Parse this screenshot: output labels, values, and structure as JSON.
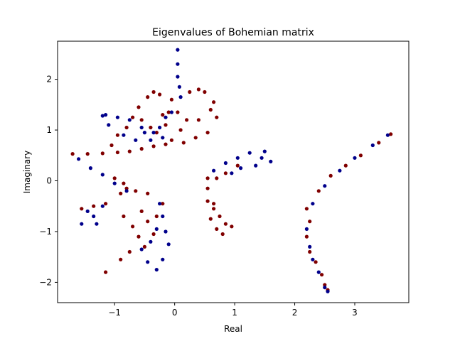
{
  "chart_data": {
    "type": "scatter",
    "title": "Eigenvalues of Bohemian matrix",
    "xlabel": "Real",
    "ylabel": "Imaginary",
    "xlim": [
      -1.95,
      3.9
    ],
    "ylim": [
      -2.4,
      2.75
    ],
    "x_ticks": [
      -1,
      0,
      1,
      2,
      3
    ],
    "x_tick_labels": [
      "−1",
      "0",
      "1",
      "2",
      "3"
    ],
    "y_ticks": [
      -2,
      -1,
      0,
      1,
      2
    ],
    "y_tick_labels": [
      "−2",
      "−1",
      "0",
      "1",
      "2"
    ],
    "grid": false,
    "colors": {
      "blue": "#00008b",
      "red": "#800000"
    },
    "series": [
      {
        "color": "#800000",
        "points": [
          [
            -1.7,
            0.53
          ],
          [
            -1.45,
            0.53
          ],
          [
            -1.2,
            0.54
          ],
          [
            -0.95,
            0.56
          ],
          [
            -0.75,
            0.58
          ],
          [
            -0.55,
            0.63
          ],
          [
            -0.35,
            0.68
          ],
          [
            -0.15,
            0.72
          ],
          [
            -0.05,
            0.8
          ],
          [
            -1.05,
            0.7
          ],
          [
            -0.95,
            0.9
          ],
          [
            -0.8,
            1.05
          ],
          [
            -0.7,
            1.25
          ],
          [
            -0.6,
            1.45
          ],
          [
            -0.45,
            1.65
          ],
          [
            -0.35,
            1.75
          ],
          [
            -0.25,
            1.7
          ],
          [
            -0.1,
            1.35
          ],
          [
            -0.05,
            1.6
          ],
          [
            -0.55,
            1.2
          ],
          [
            -0.4,
            1.05
          ],
          [
            -0.3,
            0.95
          ],
          [
            -0.2,
            1.3
          ],
          [
            -0.15,
            1.1
          ],
          [
            0.05,
            1.35
          ],
          [
            0.1,
            1.0
          ],
          [
            0.15,
            0.75
          ],
          [
            0.25,
            1.75
          ],
          [
            0.4,
            1.8
          ],
          [
            0.5,
            1.75
          ],
          [
            0.65,
            1.55
          ],
          [
            0.7,
            1.25
          ],
          [
            0.55,
            0.95
          ],
          [
            0.35,
            0.85
          ],
          [
            0.4,
            1.2
          ],
          [
            0.2,
            1.2
          ],
          [
            0.6,
            1.4
          ],
          [
            0.55,
            -0.15
          ],
          [
            0.55,
            0.05
          ],
          [
            0.7,
            0.05
          ],
          [
            0.85,
            0.15
          ],
          [
            1.05,
            0.3
          ],
          [
            0.55,
            -0.4
          ],
          [
            0.65,
            -0.55
          ],
          [
            0.75,
            -0.7
          ],
          [
            0.85,
            -0.85
          ],
          [
            0.95,
            -0.9
          ],
          [
            0.6,
            -0.75
          ],
          [
            0.7,
            -0.95
          ],
          [
            0.8,
            -1.05
          ],
          [
            0.65,
            -0.45
          ],
          [
            -1.55,
            -0.55
          ],
          [
            -1.35,
            -0.5
          ],
          [
            -1.15,
            -0.45
          ],
          [
            -0.9,
            -0.25
          ],
          [
            -0.8,
            -0.15
          ],
          [
            -0.65,
            -0.2
          ],
          [
            -0.45,
            -0.25
          ],
          [
            -1.0,
            0.05
          ],
          [
            -0.85,
            -0.05
          ],
          [
            -0.3,
            -0.7
          ],
          [
            -1.15,
            -1.8
          ],
          [
            -0.9,
            -1.55
          ],
          [
            -0.75,
            -1.4
          ],
          [
            -0.6,
            -1.1
          ],
          [
            -0.45,
            -0.8
          ],
          [
            -0.7,
            -0.9
          ],
          [
            -0.55,
            -0.6
          ],
          [
            -0.85,
            -0.7
          ],
          [
            -0.5,
            -1.3
          ],
          [
            -0.35,
            -1.05
          ],
          [
            -0.2,
            -0.45
          ],
          [
            2.25,
            -0.8
          ],
          [
            2.2,
            -1.1
          ],
          [
            2.25,
            -1.4
          ],
          [
            2.35,
            -1.6
          ],
          [
            2.45,
            -1.85
          ],
          [
            2.5,
            -2.05
          ],
          [
            2.55,
            -2.15
          ],
          [
            2.2,
            -0.55
          ],
          [
            2.4,
            -0.2
          ],
          [
            2.6,
            0.1
          ],
          [
            2.85,
            0.3
          ],
          [
            3.1,
            0.5
          ],
          [
            3.4,
            0.75
          ],
          [
            3.6,
            0.92
          ]
        ]
      },
      {
        "color": "#00008b",
        "points": [
          [
            0.05,
            2.58
          ],
          [
            0.05,
            2.3
          ],
          [
            0.05,
            2.05
          ],
          [
            0.08,
            1.85
          ],
          [
            0.1,
            1.65
          ],
          [
            -0.05,
            1.35
          ],
          [
            -0.15,
            1.25
          ],
          [
            -0.25,
            1.05
          ],
          [
            -0.35,
            0.95
          ],
          [
            -0.4,
            0.8
          ],
          [
            -1.15,
            1.3
          ],
          [
            -0.95,
            1.25
          ],
          [
            -0.75,
            1.2
          ],
          [
            -0.55,
            1.05
          ],
          [
            -1.1,
            1.1
          ],
          [
            -1.2,
            1.28
          ],
          [
            -0.85,
            0.9
          ],
          [
            -0.65,
            0.8
          ],
          [
            -0.5,
            0.95
          ],
          [
            -0.2,
            0.85
          ],
          [
            0.65,
            0.2
          ],
          [
            0.85,
            0.35
          ],
          [
            1.05,
            0.45
          ],
          [
            1.25,
            0.55
          ],
          [
            1.5,
            0.58
          ],
          [
            1.45,
            0.45
          ],
          [
            1.6,
            0.38
          ],
          [
            1.35,
            0.3
          ],
          [
            1.1,
            0.25
          ],
          [
            0.95,
            0.15
          ],
          [
            -1.6,
            0.43
          ],
          [
            -1.4,
            0.25
          ],
          [
            -1.2,
            0.12
          ],
          [
            -1.0,
            -0.05
          ],
          [
            -0.8,
            -0.2
          ],
          [
            -1.55,
            -0.85
          ],
          [
            -1.35,
            -0.7
          ],
          [
            -1.2,
            -0.5
          ],
          [
            -1.45,
            -0.6
          ],
          [
            -1.3,
            -0.85
          ],
          [
            -0.25,
            -0.45
          ],
          [
            -0.2,
            -0.7
          ],
          [
            -0.15,
            -1.0
          ],
          [
            -0.1,
            -1.25
          ],
          [
            -0.2,
            -1.55
          ],
          [
            -0.3,
            -1.75
          ],
          [
            -0.45,
            -1.6
          ],
          [
            -0.55,
            -1.35
          ],
          [
            -0.4,
            -1.2
          ],
          [
            -0.3,
            -0.95
          ],
          [
            2.2,
            -0.95
          ],
          [
            2.25,
            -1.3
          ],
          [
            2.3,
            -1.55
          ],
          [
            2.4,
            -1.8
          ],
          [
            2.5,
            -2.1
          ],
          [
            2.55,
            -2.18
          ],
          [
            2.3,
            -0.45
          ],
          [
            2.5,
            -0.1
          ],
          [
            2.75,
            0.2
          ],
          [
            3.0,
            0.45
          ],
          [
            3.3,
            0.7
          ],
          [
            3.55,
            0.9
          ]
        ]
      }
    ]
  }
}
